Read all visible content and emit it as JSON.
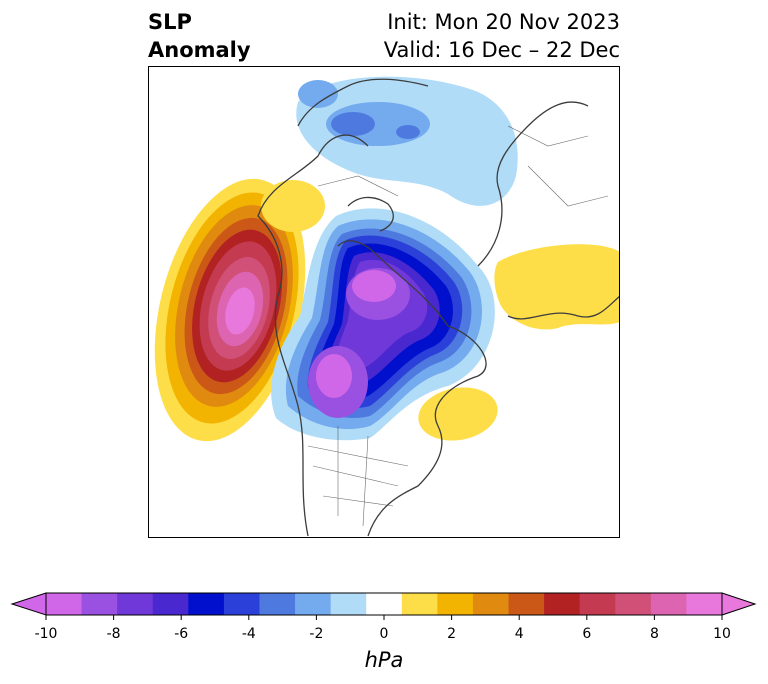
{
  "title": {
    "left_line1": "SLP",
    "left_line2": "Anomaly",
    "right_line1": "Init: Mon 20 Nov 2023",
    "right_line2": "Valid: 16 Dec – 22 Dec"
  },
  "map": {
    "projection": "north-polar-stereographic",
    "field": "sea level pressure anomaly",
    "features": [
      {
        "name": "north-pacific-high-anomaly",
        "sign": "positive",
        "peak_hpa": 10
      },
      {
        "name": "arctic-low-anomaly",
        "sign": "negative",
        "peak_hpa": -10
      },
      {
        "name": "canada-low-anomaly",
        "sign": "negative",
        "peak_hpa": -10
      },
      {
        "name": "eurasian-low-anomaly",
        "sign": "negative",
        "peak_hpa": -4
      },
      {
        "name": "siberia-high-anomaly",
        "sign": "positive",
        "peak_hpa": 2
      },
      {
        "name": "north-atlantic-high-anomaly",
        "sign": "positive",
        "peak_hpa": 2
      }
    ]
  },
  "colorbar": {
    "label": "hPa",
    "extend": "both",
    "boundaries": [
      -10,
      -9,
      -8,
      -7,
      -6,
      -5,
      -4,
      -3,
      -2,
      -1,
      1,
      2,
      3,
      4,
      5,
      6,
      7,
      8,
      9,
      10
    ],
    "colors": [
      "#d066e8",
      "#9a50e0",
      "#7038d8",
      "#4a28d0",
      "#0010cc",
      "#2a40d8",
      "#4e7ae0",
      "#74aaee",
      "#b0dcf8",
      "#ffffff",
      "#fede48",
      "#f2b400",
      "#e08a10",
      "#cc5818",
      "#b22222",
      "#c43a50",
      "#d05078",
      "#dc64b0",
      "#e878dc"
    ],
    "ticks": [
      "-10",
      "-8",
      "-6",
      "-4",
      "-2",
      "0",
      "2",
      "4",
      "6",
      "8",
      "10"
    ]
  }
}
